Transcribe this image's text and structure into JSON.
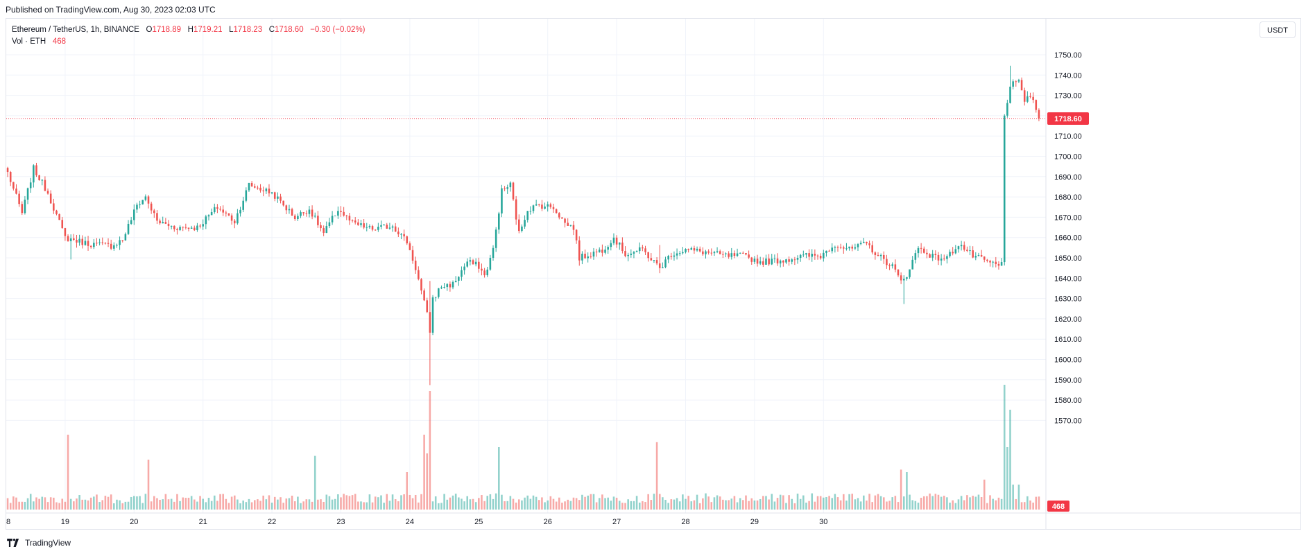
{
  "header": {
    "caption": "Published on TradingView.com, Aug 30, 2023 02:03 UTC"
  },
  "legend": {
    "symbol": "Ethereum / TetherUS, 1h, BINANCE",
    "open_label": "O",
    "open": "1718.89",
    "high_label": "H",
    "high": "1719.21",
    "low_label": "L",
    "low": "1718.23",
    "close_label": "C",
    "close": "1718.60",
    "change": "−0.30 (−0.02%)",
    "vol_label": "Vol · ETH",
    "vol_value": "468"
  },
  "currency_button": "USDT",
  "footer": {
    "brand": "TradingView"
  },
  "colors": {
    "up": "#26a69a",
    "down": "#ef5350",
    "up_text": "#089981",
    "down_text": "#f23645",
    "grid": "#f0f3fa",
    "price_line": "#f23645"
  },
  "icons": {
    "logo": "tradingview-logo-icon"
  },
  "chart_data": {
    "type": "candlestick",
    "timeframe": "1h",
    "x_ticks": [
      "8",
      "19",
      "20",
      "21",
      "22",
      "23",
      "24",
      "25",
      "26",
      "27",
      "28",
      "29",
      "30"
    ],
    "y_ticks": [
      1570,
      1580,
      1590,
      1600,
      1610,
      1620,
      1630,
      1640,
      1650,
      1660,
      1670,
      1680,
      1690,
      1700,
      1710,
      1720,
      1730,
      1740,
      1750
    ],
    "y_tick_labels": [
      "1570.00",
      "1580.00",
      "1590.00",
      "1600.00",
      "1610.00",
      "1620.00",
      "1630.00",
      "1640.00",
      "1650.00",
      "1660.00",
      "1670.00",
      "1680.00",
      "1690.00",
      "1700.00",
      "1710.00",
      "1720.00",
      "1730.00",
      "1740.00",
      "1750.00"
    ],
    "ylim": [
      1564,
      1752
    ],
    "last_price": 1718.6,
    "last_price_label": "1718.60",
    "last_volume_label": "468",
    "grid": true,
    "anchors": [
      {
        "t": 0,
        "p": 1692
      },
      {
        "t": 5,
        "p": 1672
      },
      {
        "t": 9,
        "p": 1694
      },
      {
        "t": 14,
        "p": 1682
      },
      {
        "t": 20,
        "p": 1660
      },
      {
        "t": 28,
        "p": 1657
      },
      {
        "t": 36,
        "p": 1656
      },
      {
        "t": 40,
        "p": 1659
      },
      {
        "t": 45,
        "p": 1676
      },
      {
        "t": 48,
        "p": 1680
      },
      {
        "t": 52,
        "p": 1668
      },
      {
        "t": 58,
        "p": 1665
      },
      {
        "t": 66,
        "p": 1665
      },
      {
        "t": 73,
        "p": 1675
      },
      {
        "t": 79,
        "p": 1668
      },
      {
        "t": 84,
        "p": 1686
      },
      {
        "t": 92,
        "p": 1682
      },
      {
        "t": 100,
        "p": 1670
      },
      {
        "t": 105,
        "p": 1674
      },
      {
        "t": 110,
        "p": 1662
      },
      {
        "t": 115,
        "p": 1674
      },
      {
        "t": 120,
        "p": 1667
      },
      {
        "t": 127,
        "p": 1664
      },
      {
        "t": 134,
        "p": 1666
      },
      {
        "t": 139,
        "p": 1658
      },
      {
        "t": 142,
        "p": 1645
      },
      {
        "t": 146,
        "p": 1622
      },
      {
        "t": 147,
        "p": 1614
      },
      {
        "t": 148,
        "p": 1630
      },
      {
        "t": 151,
        "p": 1636
      },
      {
        "t": 155,
        "p": 1637
      },
      {
        "t": 160,
        "p": 1648
      },
      {
        "t": 164,
        "p": 1646
      },
      {
        "t": 166,
        "p": 1641
      },
      {
        "t": 169,
        "p": 1654
      },
      {
        "t": 172,
        "p": 1683
      },
      {
        "t": 175,
        "p": 1686
      },
      {
        "t": 178,
        "p": 1662
      },
      {
        "t": 181,
        "p": 1674
      },
      {
        "t": 185,
        "p": 1676
      },
      {
        "t": 190,
        "p": 1675
      },
      {
        "t": 194,
        "p": 1667
      },
      {
        "t": 197,
        "p": 1665
      },
      {
        "t": 199,
        "p": 1650
      },
      {
        "t": 203,
        "p": 1652
      },
      {
        "t": 207,
        "p": 1654
      },
      {
        "t": 211,
        "p": 1660
      },
      {
        "t": 215,
        "p": 1652
      },
      {
        "t": 221,
        "p": 1654
      },
      {
        "t": 227,
        "p": 1645
      },
      {
        "t": 231,
        "p": 1652
      },
      {
        "t": 236,
        "p": 1654
      },
      {
        "t": 242,
        "p": 1653
      },
      {
        "t": 250,
        "p": 1651
      },
      {
        "t": 256,
        "p": 1651
      },
      {
        "t": 262,
        "p": 1648
      },
      {
        "t": 270,
        "p": 1649
      },
      {
        "t": 278,
        "p": 1651
      },
      {
        "t": 283,
        "p": 1651
      },
      {
        "t": 288,
        "p": 1657
      },
      {
        "t": 293,
        "p": 1654
      },
      {
        "t": 299,
        "p": 1657
      },
      {
        "t": 303,
        "p": 1651
      },
      {
        "t": 308,
        "p": 1646
      },
      {
        "t": 311,
        "p": 1638
      },
      {
        "t": 313,
        "p": 1642
      },
      {
        "t": 317,
        "p": 1655
      },
      {
        "t": 323,
        "p": 1650
      },
      {
        "t": 327,
        "p": 1650
      },
      {
        "t": 331,
        "p": 1657
      },
      {
        "t": 336,
        "p": 1651
      },
      {
        "t": 341,
        "p": 1648
      },
      {
        "t": 345,
        "p": 1646
      },
      {
        "t": 346,
        "p": 1647
      },
      {
        "t": 347,
        "p": 1720
      },
      {
        "t": 349,
        "p": 1735
      },
      {
        "t": 352,
        "p": 1736
      },
      {
        "t": 354,
        "p": 1728
      },
      {
        "t": 356,
        "p": 1730
      },
      {
        "t": 359,
        "p": 1718.6
      }
    ],
    "volume_peaks": [
      {
        "t": 21,
        "v": 0.6
      },
      {
        "t": 49,
        "v": 0.4
      },
      {
        "t": 107,
        "v": 0.43
      },
      {
        "t": 139,
        "v": 0.3
      },
      {
        "t": 145,
        "v": 0.6
      },
      {
        "t": 146,
        "v": 0.45
      },
      {
        "t": 147,
        "v": 0.95
      },
      {
        "t": 171,
        "v": 0.5
      },
      {
        "t": 226,
        "v": 0.54
      },
      {
        "t": 311,
        "v": 0.32
      },
      {
        "t": 313,
        "v": 0.3
      },
      {
        "t": 340,
        "v": 0.24
      },
      {
        "t": 347,
        "v": 1.0
      },
      {
        "t": 348,
        "v": 0.5
      },
      {
        "t": 349,
        "v": 0.8
      },
      {
        "t": 350,
        "v": 0.2
      },
      {
        "t": 352,
        "v": 0.2
      }
    ]
  }
}
